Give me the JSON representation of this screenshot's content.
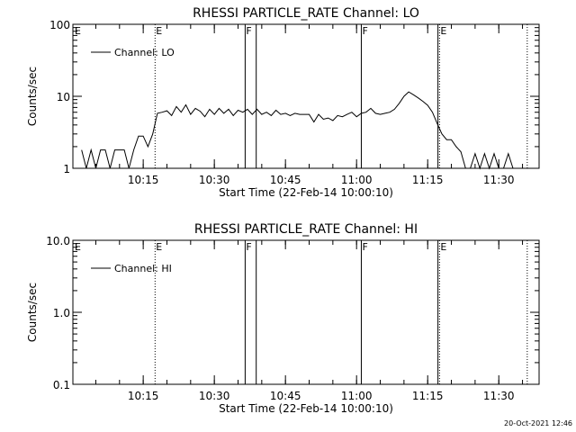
{
  "chart_data": [
    {
      "type": "line",
      "title": "RHESSI PARTICLE_RATE Channel: LO",
      "xlabel": "Start Time (22-Feb-14 10:00:10)",
      "ylabel": "Counts/sec",
      "yscale": "log",
      "ylim": [
        1,
        100
      ],
      "xlim": [
        "10:00:10",
        "11:38:30"
      ],
      "y_ticks": [
        "1",
        "10",
        "100"
      ],
      "x_ticks": [
        "10:15",
        "10:30",
        "10:45",
        "11:00",
        "11:15",
        "11:30"
      ],
      "grid": false,
      "legend_position": "top-left",
      "series": [
        {
          "name": "Channel: LO",
          "x": [
            "10:02",
            "10:03",
            "10:04",
            "10:05",
            "10:06",
            "10:07",
            "10:08",
            "10:09",
            "10:10",
            "10:11",
            "10:12",
            "10:13",
            "10:14",
            "10:15",
            "10:16",
            "10:17",
            "10:18",
            "10:19",
            "10:20",
            "10:21",
            "10:22",
            "10:23",
            "10:24",
            "10:25",
            "10:26",
            "10:27",
            "10:28",
            "10:29",
            "10:30",
            "10:31",
            "10:32",
            "10:33",
            "10:34",
            "10:35",
            "10:36",
            "10:37",
            "10:38",
            "10:39",
            "10:40",
            "10:41",
            "10:42",
            "10:43",
            "10:44",
            "10:45",
            "10:46",
            "10:47",
            "10:48",
            "10:49",
            "10:50",
            "10:51",
            "10:52",
            "10:53",
            "10:54",
            "10:55",
            "10:56",
            "10:57",
            "10:58",
            "10:59",
            "11:00",
            "11:01",
            "11:02",
            "11:03",
            "11:04",
            "11:05",
            "11:06",
            "11:07",
            "11:08",
            "11:09",
            "11:10",
            "11:11",
            "11:12",
            "11:13",
            "11:14",
            "11:15",
            "11:16",
            "11:17",
            "11:18",
            "11:19",
            "11:20",
            "11:21",
            "11:22",
            "11:23",
            "11:24",
            "11:25",
            "11:26",
            "11:27",
            "11:28",
            "11:29",
            "11:30",
            "11:31",
            "11:32",
            "11:33",
            "11:34",
            "11:35"
          ],
          "values": [
            1.8,
            1.0,
            1.8,
            1.0,
            1.8,
            1.8,
            1.0,
            1.8,
            1.8,
            1.8,
            1.0,
            1.8,
            2.8,
            2.8,
            2.0,
            3.0,
            5.8,
            6.0,
            6.3,
            5.4,
            7.2,
            6.0,
            7.6,
            5.6,
            6.8,
            6.2,
            5.2,
            6.6,
            5.6,
            6.8,
            5.8,
            6.6,
            5.4,
            6.4,
            6.0,
            6.6,
            5.6,
            6.6,
            5.6,
            6.0,
            5.4,
            6.4,
            5.6,
            5.8,
            5.4,
            5.8,
            5.6,
            5.6,
            5.6,
            4.4,
            5.6,
            4.8,
            5.0,
            4.6,
            5.4,
            5.2,
            5.6,
            6.0,
            5.2,
            5.8,
            6.0,
            6.8,
            5.8,
            5.6,
            5.8,
            6.0,
            6.6,
            8.0,
            10.0,
            11.5,
            10.5,
            9.5,
            8.5,
            7.5,
            6.0,
            4.2,
            3.0,
            2.5,
            2.5,
            2.0,
            1.7,
            1.0,
            1.0,
            1.6,
            1.0,
            1.6,
            1.0,
            1.6,
            1.0,
            1.0,
            1.6,
            1.0,
            1.0,
            1.0
          ]
        }
      ],
      "annotations": [
        {
          "time": "10:17:30",
          "style": "dotted",
          "label": "E"
        },
        {
          "time": "10:36:30",
          "style": "solid",
          "label": "F"
        },
        {
          "time": "10:38:50",
          "style": "solid",
          "label": ""
        },
        {
          "time": "11:01:00",
          "style": "solid",
          "label": "F"
        },
        {
          "time": "11:17:10",
          "style": "solid",
          "label": ""
        },
        {
          "time": "11:17:30",
          "style": "dotted",
          "label": "E"
        },
        {
          "time": "11:36:00",
          "style": "dotted",
          "label": ""
        }
      ],
      "left_annotation": "E"
    },
    {
      "type": "line",
      "title": "RHESSI PARTICLE_RATE Channel: HI",
      "xlabel": "Start Time (22-Feb-14 10:00:10)",
      "ylabel": "Counts/sec",
      "yscale": "log",
      "ylim": [
        0.1,
        10
      ],
      "xlim": [
        "10:00:10",
        "11:38:30"
      ],
      "y_ticks": [
        "0.1",
        "1.0",
        "10.0"
      ],
      "x_ticks": [
        "10:15",
        "10:30",
        "10:45",
        "11:00",
        "11:15",
        "11:30"
      ],
      "grid": false,
      "legend_position": "top-left",
      "series": [
        {
          "name": "Channel: HI",
          "x": [],
          "values": []
        }
      ],
      "annotations": [
        {
          "time": "10:17:30",
          "style": "dotted",
          "label": "E"
        },
        {
          "time": "10:36:30",
          "style": "solid",
          "label": "F"
        },
        {
          "time": "10:38:50",
          "style": "solid",
          "label": ""
        },
        {
          "time": "11:01:00",
          "style": "solid",
          "label": "F"
        },
        {
          "time": "11:17:10",
          "style": "solid",
          "label": ""
        },
        {
          "time": "11:17:30",
          "style": "dotted",
          "label": "E"
        },
        {
          "time": "11:36:00",
          "style": "dotted",
          "label": ""
        }
      ],
      "left_annotation": "E"
    }
  ],
  "footer": {
    "timestamp": "20-Oct-2021 12:46"
  }
}
